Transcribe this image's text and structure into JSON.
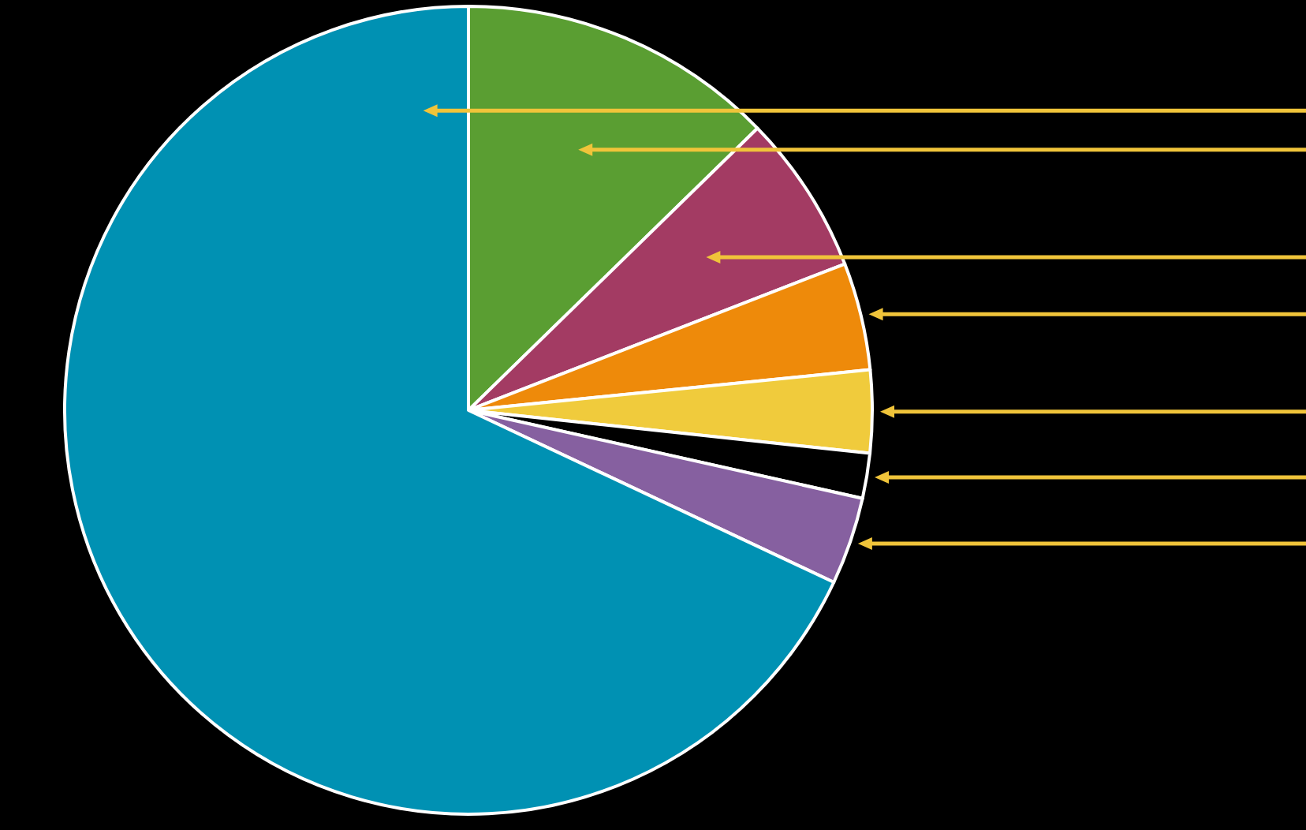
{
  "chart_data": {
    "type": "pie",
    "categories": [
      null,
      null,
      null,
      null,
      null,
      null,
      null
    ],
    "values": [
      12.7,
      6.4,
      4.3,
      3.3,
      1.8,
      3.5,
      68.0
    ],
    "colors": [
      "#5a9e32",
      "#a33b63",
      "#ee8a0a",
      "#f0cb3c",
      "#000000",
      "#8660a0",
      "#0091b3"
    ]
  }
}
